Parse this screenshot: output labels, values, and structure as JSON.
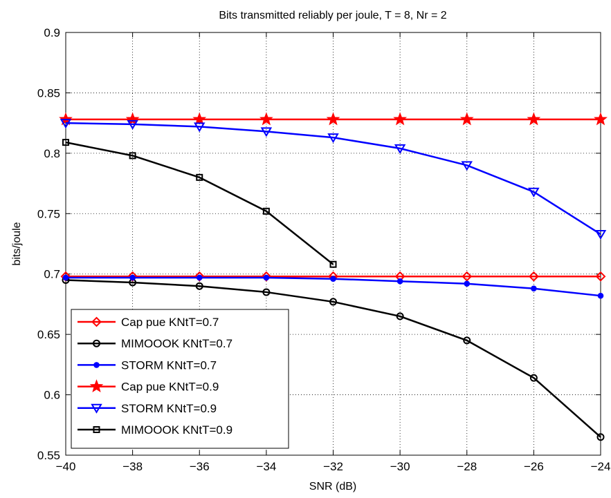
{
  "chart_data": {
    "type": "line",
    "title": "Bits transmitted reliably per joule, T = 8, Nr = 2",
    "xlabel": "SNR (dB)",
    "ylabel": "bits/joule",
    "xlim": [
      -40,
      -24
    ],
    "ylim": [
      0.55,
      0.9
    ],
    "x_ticks": [
      -40,
      -38,
      -36,
      -34,
      -32,
      -30,
      -28,
      -26,
      -24
    ],
    "x_tick_labels": [
      "−40",
      "−38",
      "−36",
      "−34",
      "−32",
      "−30",
      "−28",
      "−26",
      "−24"
    ],
    "y_ticks": [
      0.55,
      0.6,
      0.65,
      0.7,
      0.75,
      0.8,
      0.85,
      0.9
    ],
    "y_tick_labels": [
      "0.55",
      "0.6",
      "0.65",
      "0.7",
      "0.75",
      "0.8",
      "0.85",
      "0.9"
    ],
    "grid": true,
    "legend_position": "bottom-left",
    "series": [
      {
        "name": "Cap pue KNtT=0.7",
        "color": "#ff0000",
        "marker": "diamond",
        "x": [
          -40,
          -38,
          -36,
          -34,
          -32,
          -30,
          -28,
          -26,
          -24
        ],
        "y": [
          0.698,
          0.698,
          0.698,
          0.698,
          0.698,
          0.698,
          0.698,
          0.698,
          0.698
        ]
      },
      {
        "name": "MIMOOOK KNtT=0.7",
        "color": "#000000",
        "marker": "circle",
        "x": [
          -40,
          -38,
          -36,
          -34,
          -32,
          -30,
          -28,
          -26,
          -24
        ],
        "y": [
          0.695,
          0.693,
          0.69,
          0.685,
          0.677,
          0.665,
          0.645,
          0.614,
          0.565
        ]
      },
      {
        "name": "STORM KNtT=0.7",
        "color": "#0000ff",
        "marker": "dot",
        "x": [
          -40,
          -38,
          -36,
          -34,
          -32,
          -30,
          -28,
          -26,
          -24
        ],
        "y": [
          0.697,
          0.697,
          0.697,
          0.697,
          0.696,
          0.694,
          0.692,
          0.688,
          0.682
        ]
      },
      {
        "name": "Cap pue KNtT=0.9",
        "color": "#ff0000",
        "marker": "star",
        "x": [
          -40,
          -38,
          -36,
          -34,
          -32,
          -30,
          -28,
          -26,
          -24
        ],
        "y": [
          0.828,
          0.828,
          0.828,
          0.828,
          0.828,
          0.828,
          0.828,
          0.828,
          0.828
        ]
      },
      {
        "name": "STORM KNtT=0.9",
        "color": "#0000ff",
        "marker": "triangle-down",
        "x": [
          -40,
          -38,
          -36,
          -34,
          -32,
          -30,
          -28,
          -26,
          -24
        ],
        "y": [
          0.825,
          0.824,
          0.822,
          0.818,
          0.813,
          0.804,
          0.79,
          0.768,
          0.733
        ]
      },
      {
        "name": "MIMOOOK KNtT=0.9",
        "color": "#000000",
        "marker": "square",
        "x": [
          -40,
          -38,
          -36,
          -34,
          -32
        ],
        "y": [
          0.809,
          0.798,
          0.78,
          0.752,
          0.708
        ]
      }
    ]
  }
}
